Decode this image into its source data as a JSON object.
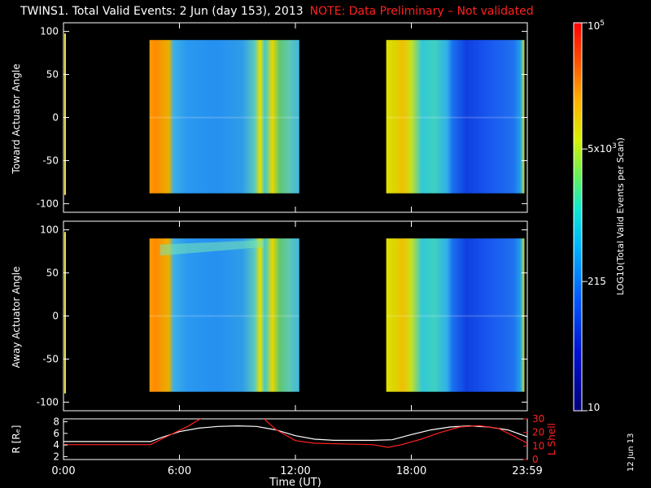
{
  "title": {
    "main": "TWINS1. Total Valid Events:  2 Jun (day 153), 2013",
    "note": "NOTE: Data Preliminary – Not validated"
  },
  "stamp": "12 Jun 13",
  "colors": {
    "note": "#ff2020",
    "r_line": "#ffffff",
    "l_line": "#ff2020"
  },
  "chart_data": [
    {
      "type": "heatmap",
      "ylabel": "Toward Actuator Angle",
      "ylim": [
        -110,
        110
      ],
      "yticks": [
        "100",
        "50",
        "0",
        "-50",
        "-100"
      ],
      "xlim": [
        0,
        24
      ],
      "blocks": [
        {
          "x0": 4.45,
          "x1": 12.2,
          "y0": -88,
          "y1": 90
        },
        {
          "x0": 16.7,
          "x1": 23.85,
          "y0": -88,
          "y1": 90
        }
      ]
    },
    {
      "type": "heatmap",
      "ylabel": "Away Actuator Angle",
      "ylim": [
        -110,
        110
      ],
      "yticks": [
        "100",
        "50",
        "0",
        "-50",
        "-100"
      ],
      "xlim": [
        0,
        24
      ],
      "blocks": [
        {
          "x0": 4.45,
          "x1": 12.2,
          "y0": -88,
          "y1": 90
        },
        {
          "x0": 16.7,
          "x1": 23.85,
          "y0": -88,
          "y1": 90
        }
      ]
    },
    {
      "type": "line",
      "xlabel": "Time (UT)",
      "xticks": [
        "0:00",
        "6:00",
        "12:00",
        "18:00",
        "23:59"
      ],
      "xlim": [
        0,
        24
      ],
      "ylabel_left": "R [Rₑ]",
      "ylim_left": [
        1.5,
        8.5
      ],
      "yticks_left": [
        "8",
        "6",
        "4",
        "2"
      ],
      "ylabel_right": "L Shell",
      "ylim_right": [
        0,
        30
      ],
      "yticks_right": [
        "30",
        "20",
        "10",
        "0"
      ],
      "series": [
        {
          "name": "R [Rₑ]",
          "axis": "left",
          "x": [
            0,
            4.5,
            5,
            6,
            7,
            8,
            9,
            10,
            11,
            12,
            13,
            14,
            15,
            16,
            17,
            18,
            19,
            20,
            21,
            22,
            23,
            24
          ],
          "y": [
            4.6,
            4.6,
            5.2,
            6.3,
            6.9,
            7.2,
            7.3,
            7.2,
            6.6,
            5.6,
            5.0,
            4.8,
            4.8,
            4.8,
            4.9,
            5.8,
            6.6,
            7.1,
            7.3,
            7.1,
            6.6,
            5.4
          ]
        },
        {
          "name": "L Shell",
          "axis": "right",
          "x": [
            0,
            4.5,
            5.5,
            6.5,
            7.2,
            10.3,
            11,
            12,
            13,
            16,
            16.8,
            17.5,
            18.5,
            19.5,
            20.5,
            21.5,
            22.5,
            23.2,
            24
          ],
          "y": [
            11,
            11,
            18,
            25,
            31,
            31,
            22,
            14,
            12,
            11,
            9,
            11,
            15,
            20,
            24,
            25,
            23,
            18,
            12
          ]
        }
      ]
    }
  ],
  "colorbar": {
    "label": "LOG10(Total Valid Events per Scan)",
    "ticks": [
      {
        "label": "10",
        "value": 10
      },
      {
        "label": "215",
        "value": 215
      },
      {
        "label": "5x10^3",
        "value": 5000
      },
      {
        "label": "10^5",
        "value": 100000
      }
    ],
    "range": [
      10,
      100000
    ]
  }
}
